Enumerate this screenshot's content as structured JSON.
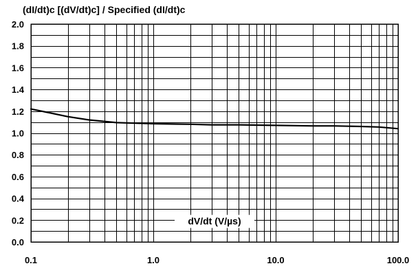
{
  "chart_data": {
    "type": "line",
    "title": "(dI/dt)c [(dV/dt)c] / Specified (dI/dt)c",
    "xlabel": "dV/dt (V/µs)",
    "ylabel": "",
    "x_scale": "log",
    "xlim": [
      0.1,
      100.0
    ],
    "ylim": [
      0.0,
      2.0
    ],
    "x_ticks": [
      0.1,
      1.0,
      10.0,
      100.0
    ],
    "x_tick_labels": [
      "0.1",
      "1.0",
      "10.0",
      "100.0"
    ],
    "y_ticks": [
      0.0,
      0.2,
      0.4,
      0.6,
      0.8,
      1.0,
      1.2,
      1.4,
      1.6,
      1.8,
      2.0
    ],
    "y_tick_labels": [
      "0.0",
      "0.2",
      "0.4",
      "0.6",
      "0.8",
      "1.0",
      "1.2",
      "1.4",
      "1.6",
      "1.8",
      "2.0"
    ],
    "grid": true,
    "series": [
      {
        "x": [
          0.1,
          0.15,
          0.2,
          0.3,
          0.5,
          0.7,
          1.0,
          2.0,
          3.0,
          5.0,
          10.0,
          20.0,
          30.0,
          50.0,
          70.0,
          100.0
        ],
        "values": [
          1.22,
          1.18,
          1.15,
          1.12,
          1.095,
          1.09,
          1.085,
          1.08,
          1.075,
          1.075,
          1.07,
          1.065,
          1.065,
          1.06,
          1.055,
          1.04
        ]
      }
    ]
  }
}
